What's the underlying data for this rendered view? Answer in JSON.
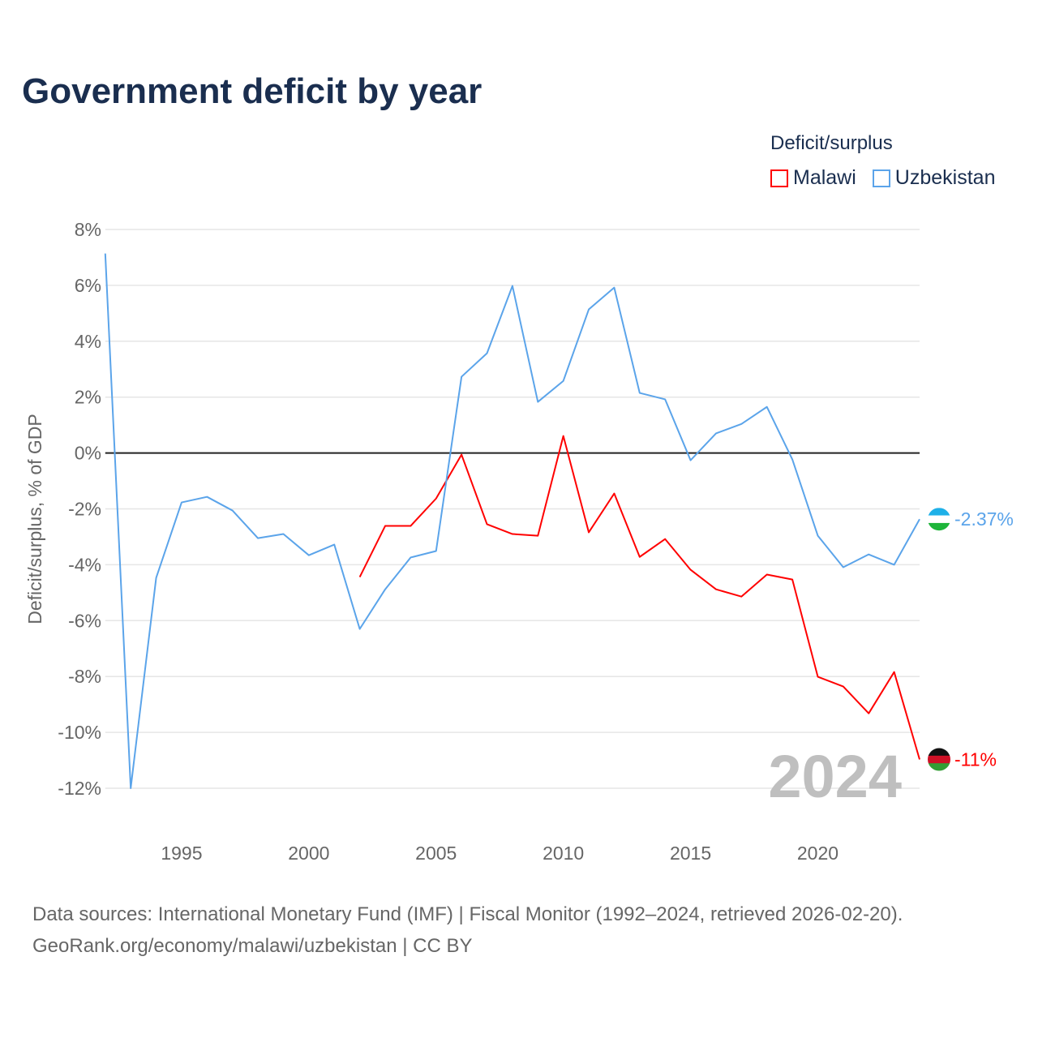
{
  "title": "Government deficit by year",
  "legend": {
    "title": "Deficit/surplus",
    "items": [
      {
        "label": "Malawi",
        "color": "#ff0000"
      },
      {
        "label": "Uzbekistan",
        "color": "#5ba4ea"
      }
    ]
  },
  "source": {
    "line1": "Data sources: International Monetary Fund (IMF) | Fiscal Monitor (1992–2024, retrieved 2026-02-20).",
    "line2": "GeoRank.org/economy/malawi/uzbekistan | CC BY"
  },
  "chart_data": {
    "type": "line",
    "title": "Government deficit by year",
    "ylabel": "Deficit/surplus, % of GDP",
    "xlabel": "",
    "xlim": [
      1992,
      2024
    ],
    "ylim": [
      -12,
      8
    ],
    "yticks": [
      8,
      6,
      4,
      2,
      0,
      -2,
      -4,
      -6,
      -8,
      -10,
      -12
    ],
    "ytick_labels": [
      "8%",
      "6%",
      "4%",
      "2%",
      "0%",
      "-2%",
      "-4%",
      "-6%",
      "-8%",
      "-10%",
      "-12%"
    ],
    "xticks": [
      1995,
      2000,
      2005,
      2010,
      2015,
      2020
    ],
    "xtick_labels": [
      "1995",
      "2000",
      "2005",
      "2010",
      "2015",
      "2020"
    ],
    "year_watermark": "2024",
    "grid": true,
    "legend_position": "top-right",
    "series": [
      {
        "name": "Malawi",
        "color": "#ff0000",
        "end_label": "-11%",
        "x": [
          2002,
          2003,
          2004,
          2005,
          2006,
          2007,
          2008,
          2009,
          2010,
          2011,
          2012,
          2013,
          2014,
          2015,
          2016,
          2017,
          2018,
          2019,
          2020,
          2021,
          2022,
          2023,
          2024
        ],
        "values": [
          -4.44,
          -2.61,
          -2.61,
          -1.63,
          -0.06,
          -2.55,
          -2.9,
          -2.96,
          0.61,
          -2.84,
          -1.45,
          -3.72,
          -3.08,
          -4.18,
          -4.88,
          -5.14,
          -4.35,
          -4.53,
          -8.01,
          -8.36,
          -9.32,
          -7.84,
          -10.97
        ]
      },
      {
        "name": "Uzbekistan",
        "color": "#5ba4ea",
        "end_label": "-2.37%",
        "x": [
          1992,
          1993,
          1994,
          1995,
          1996,
          1997,
          1998,
          1999,
          2000,
          2001,
          2002,
          2003,
          2004,
          2005,
          2006,
          2007,
          2008,
          2009,
          2010,
          2011,
          2012,
          2013,
          2014,
          2015,
          2016,
          2017,
          2018,
          2019,
          2020,
          2021,
          2022,
          2023,
          2024
        ],
        "values": [
          7.14,
          -12.0,
          -4.47,
          -1.77,
          -1.57,
          -2.06,
          -3.05,
          -2.9,
          -3.66,
          -3.28,
          -6.3,
          -4.88,
          -3.74,
          -3.51,
          2.73,
          3.57,
          5.98,
          1.83,
          2.58,
          5.14,
          5.92,
          2.15,
          1.92,
          -0.26,
          0.7,
          1.04,
          1.65,
          -0.23,
          -2.96,
          -4.09,
          -3.63,
          -4.0,
          -2.37
        ]
      }
    ]
  }
}
